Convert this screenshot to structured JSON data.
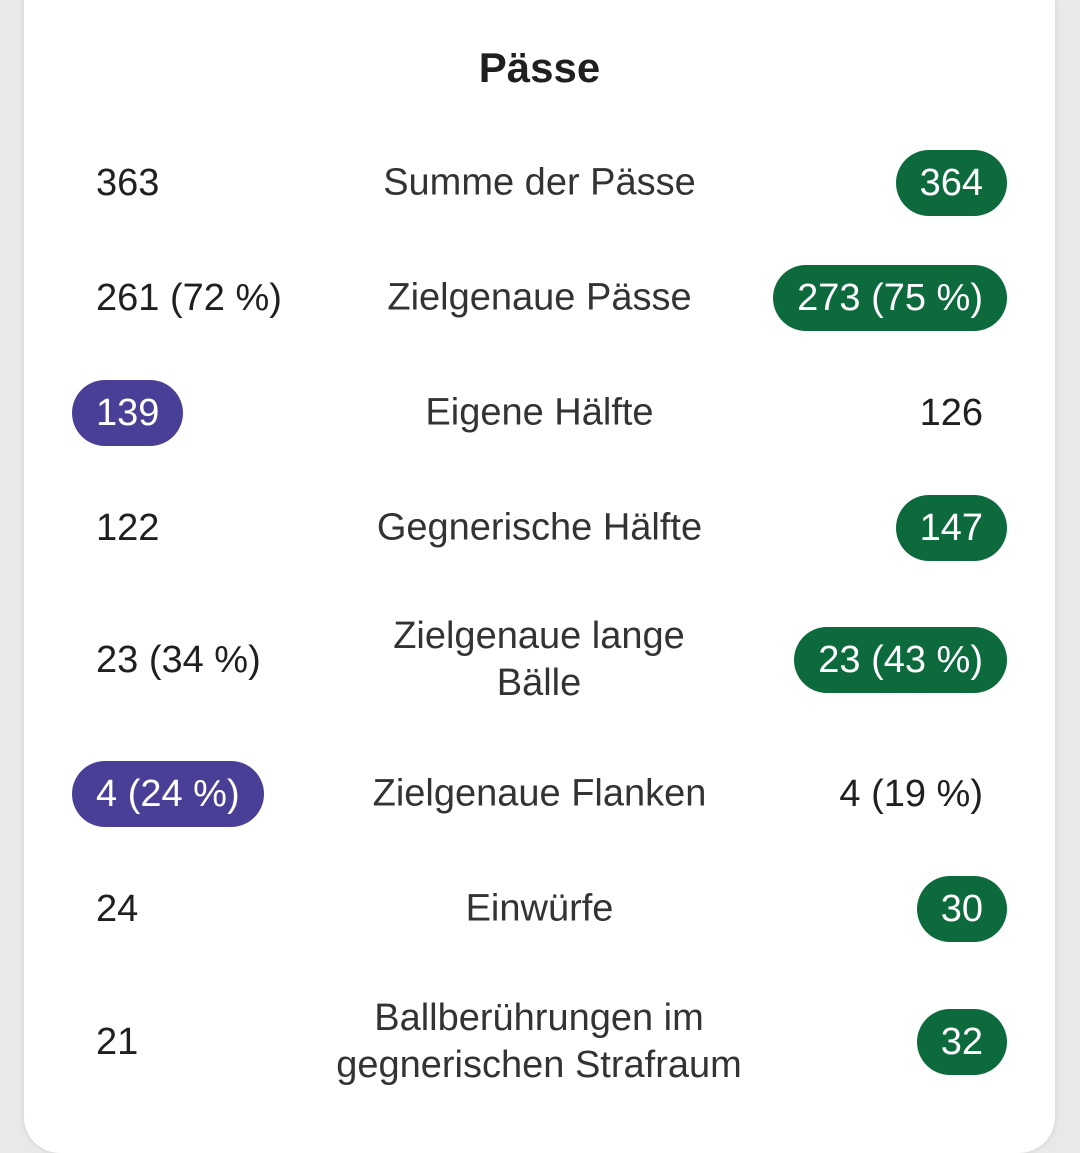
{
  "section": {
    "title": "Pässe"
  },
  "colors": {
    "home_accent": "#4a3f97",
    "away_accent": "#0c6a3c"
  },
  "rows": [
    {
      "label": "Summe der Pässe",
      "home": "363",
      "away": "364",
      "leader": "away"
    },
    {
      "label": "Zielgenaue Pässe",
      "home": "261 (72 %)",
      "away": "273 (75 %)",
      "leader": "away"
    },
    {
      "label": "Eigene Hälfte",
      "home": "139",
      "away": "126",
      "leader": "home"
    },
    {
      "label": "Gegnerische Hälfte",
      "home": "122",
      "away": "147",
      "leader": "away"
    },
    {
      "label": "Zielgenaue lange Bälle",
      "home": "23 (34 %)",
      "away": "23 (43 %)",
      "leader": "away"
    },
    {
      "label": "Zielgenaue Flanken",
      "home": "4 (24 %)",
      "away": "4 (19 %)",
      "leader": "home"
    },
    {
      "label": "Einwürfe",
      "home": "24",
      "away": "30",
      "leader": "away"
    },
    {
      "label": "Ballberührungen im gegnerischen Strafraum",
      "home": "21",
      "away": "32",
      "leader": "away"
    }
  ]
}
